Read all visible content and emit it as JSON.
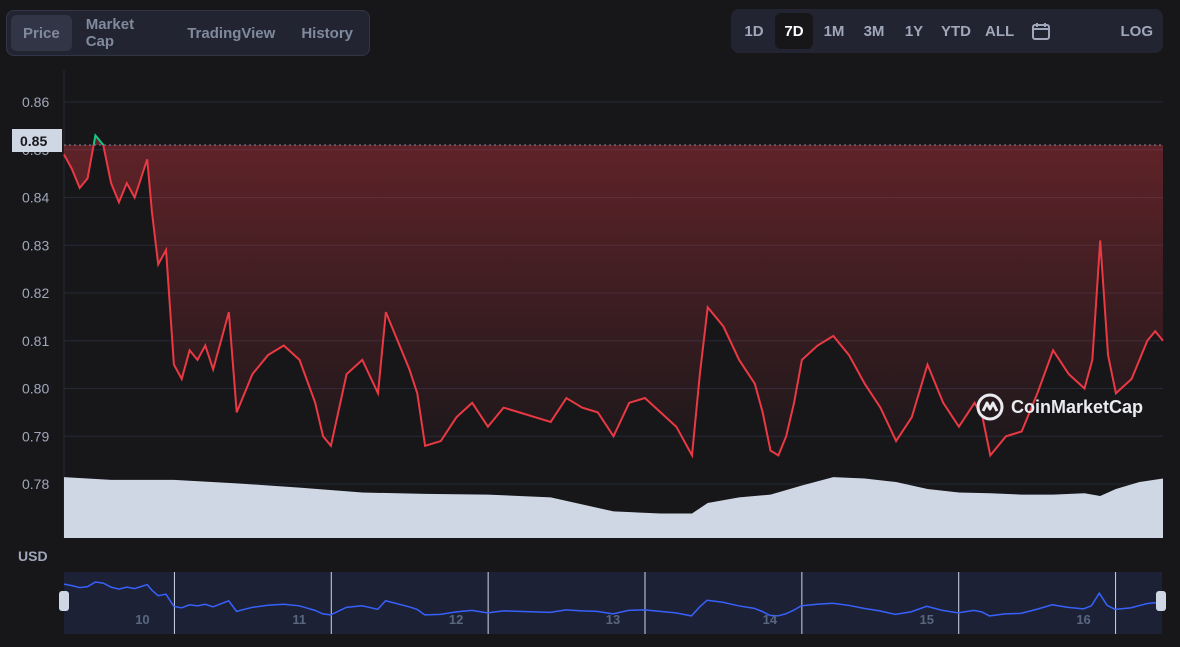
{
  "tabs": [
    {
      "label": "Price",
      "active": true
    },
    {
      "label": "Market Cap",
      "active": false
    },
    {
      "label": "TradingView",
      "active": false
    },
    {
      "label": "History",
      "active": false
    }
  ],
  "ranges": [
    {
      "label": "1D",
      "active": false
    },
    {
      "label": "7D",
      "active": true
    },
    {
      "label": "1M",
      "active": false
    },
    {
      "label": "3M",
      "active": false
    },
    {
      "label": "1Y",
      "active": false
    },
    {
      "label": "YTD",
      "active": false
    },
    {
      "label": "ALL",
      "active": false
    }
  ],
  "calendar_icon": "calendar-icon",
  "log_label": "LOG",
  "currency_label": "USD",
  "current_price_label": "0.85",
  "watermark": "CoinMarketCap",
  "colors": {
    "up": "#16c784",
    "down": "#ea3943",
    "volume": "#cfd6e4",
    "navigator_line": "#3861fb",
    "background": "#17171a"
  },
  "chart_data": {
    "type": "line",
    "y_ticks": [
      "0.86",
      "0.85",
      "0.84",
      "0.83",
      "0.82",
      "0.81",
      "0.80",
      "0.79",
      "0.78"
    ],
    "ylim": [
      0.77,
      0.865
    ],
    "x_ticks": [
      "10",
      "11",
      "12",
      "13",
      "14",
      "15",
      "16"
    ],
    "xlim": [
      9.5,
      16.5
    ],
    "reference_price": 0.851,
    "series": [
      {
        "values_x": [
          9.5,
          9.55,
          9.6,
          9.65,
          9.7,
          9.75,
          9.8,
          9.85,
          9.9,
          9.95,
          10.0,
          10.03,
          10.06,
          10.1,
          10.15,
          10.2,
          10.25,
          10.3,
          10.35,
          10.4,
          10.45,
          10.5,
          10.55,
          10.6,
          10.7,
          10.8,
          10.9,
          11.0,
          11.1,
          11.15,
          11.2,
          11.3,
          11.4,
          11.5,
          11.55,
          11.6,
          11.7,
          11.75,
          11.8,
          11.9,
          12.0,
          12.1,
          12.2,
          12.3,
          12.4,
          12.5,
          12.6,
          12.7,
          12.8,
          12.9,
          13.0,
          13.1,
          13.2,
          13.3,
          13.4,
          13.5,
          13.55,
          13.6,
          13.7,
          13.8,
          13.9,
          13.95,
          14.0,
          14.05,
          14.1,
          14.15,
          14.2,
          14.3,
          14.4,
          14.5,
          14.6,
          14.7,
          14.8,
          14.9,
          15.0,
          15.1,
          15.2,
          15.3,
          15.35,
          15.4,
          15.5,
          15.6,
          15.7,
          15.8,
          15.9,
          16.0,
          16.05,
          16.1,
          16.15,
          16.2,
          16.3,
          16.4,
          16.45,
          16.5
        ],
        "values": [
          0.849,
          0.846,
          0.842,
          0.844,
          0.853,
          0.851,
          0.843,
          0.839,
          0.843,
          0.84,
          0.845,
          0.848,
          0.837,
          0.826,
          0.829,
          0.805,
          0.802,
          0.808,
          0.806,
          0.809,
          0.804,
          0.81,
          0.816,
          0.795,
          0.803,
          0.807,
          0.809,
          0.806,
          0.797,
          0.79,
          0.788,
          0.803,
          0.806,
          0.799,
          0.816,
          0.812,
          0.804,
          0.799,
          0.788,
          0.789,
          0.794,
          0.797,
          0.792,
          0.796,
          0.795,
          0.794,
          0.793,
          0.798,
          0.796,
          0.795,
          0.79,
          0.797,
          0.798,
          0.795,
          0.792,
          0.786,
          0.803,
          0.817,
          0.813,
          0.806,
          0.801,
          0.795,
          0.787,
          0.786,
          0.79,
          0.797,
          0.806,
          0.809,
          0.811,
          0.807,
          0.801,
          0.796,
          0.789,
          0.794,
          0.805,
          0.797,
          0.792,
          0.797,
          0.794,
          0.786,
          0.79,
          0.791,
          0.799,
          0.808,
          0.803,
          0.8,
          0.806,
          0.831,
          0.807,
          0.799,
          0.802,
          0.81,
          0.812,
          0.81
        ]
      }
    ],
    "volume": {
      "x": [
        9.5,
        9.8,
        10.2,
        10.6,
        11.0,
        11.4,
        11.8,
        12.2,
        12.6,
        13.0,
        13.3,
        13.5,
        13.6,
        13.8,
        14.0,
        14.2,
        14.4,
        14.6,
        14.8,
        15.0,
        15.2,
        15.4,
        15.6,
        15.8,
        16.0,
        16.1,
        16.2,
        16.35,
        16.5
      ],
      "relative": [
        0.87,
        0.83,
        0.83,
        0.78,
        0.72,
        0.65,
        0.63,
        0.62,
        0.58,
        0.38,
        0.35,
        0.35,
        0.5,
        0.58,
        0.62,
        0.75,
        0.87,
        0.85,
        0.8,
        0.7,
        0.65,
        0.64,
        0.62,
        0.62,
        0.64,
        0.6,
        0.7,
        0.8,
        0.85
      ]
    }
  }
}
